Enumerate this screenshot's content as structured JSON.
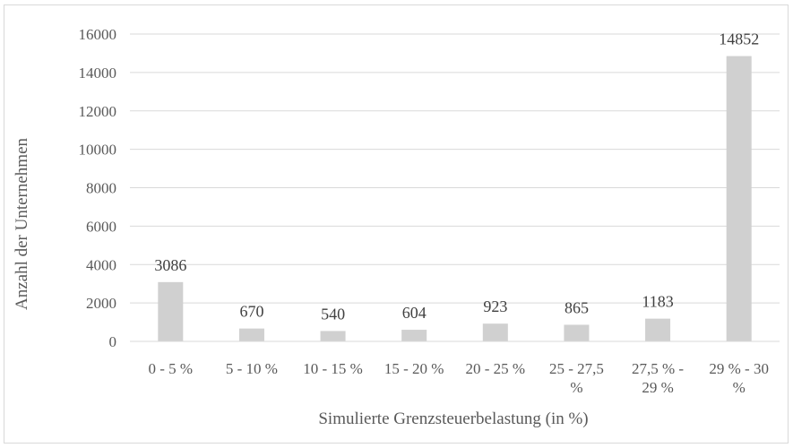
{
  "chart_data": {
    "type": "bar",
    "categories": [
      [
        "0 - 5 %"
      ],
      [
        "5 - 10 %"
      ],
      [
        "10 - 15 %"
      ],
      [
        "15 - 20 %"
      ],
      [
        "20 - 25 %"
      ],
      [
        "25 - 27,5",
        "%"
      ],
      [
        "27,5 % -",
        "29 %"
      ],
      [
        "29 % - 30",
        "%"
      ]
    ],
    "values": [
      3086,
      670,
      540,
      604,
      923,
      865,
      1183,
      14852
    ],
    "data_labels": [
      "3086",
      "670",
      "540",
      "604",
      "923",
      "865",
      "1183",
      "14852"
    ],
    "yticks": [
      "0",
      "2000",
      "4000",
      "6000",
      "8000",
      "10000",
      "12000",
      "14000",
      "16000"
    ],
    "title": "",
    "xlabel": "Simulierte Grenzsteuerbelastung (in %)",
    "ylabel": "Anzahl der Unternehmen",
    "ylim": [
      0,
      16000
    ],
    "grid": true,
    "legend": "none",
    "colors": {
      "bar": "#d0d0d0",
      "grid": "#d9d9d9",
      "axis": "#d9d9d9",
      "tick_text": "#595959",
      "label_text": "#404040"
    }
  }
}
